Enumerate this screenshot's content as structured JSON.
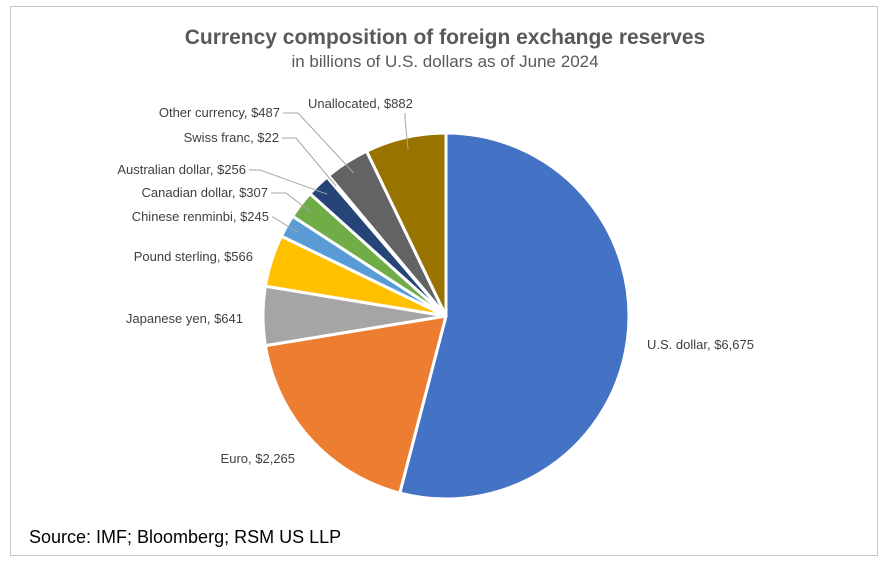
{
  "chart_data": {
    "type": "pie",
    "title": "Currency composition of foreign exchange reserves",
    "subtitle": "in billions of U.S. dollars as of June 2024",
    "slices": [
      {
        "name": "U.S. dollar",
        "value": 6675,
        "label": "U.S. dollar, $6,675",
        "color": "#4472C4"
      },
      {
        "name": "Euro",
        "value": 2265,
        "label": "Euro, $2,265",
        "color": "#ED7D31"
      },
      {
        "name": "Japanese yen",
        "value": 641,
        "label": "Japanese yen, $641",
        "color": "#A5A5A5"
      },
      {
        "name": "Pound sterling",
        "value": 566,
        "label": "Pound sterling, $566",
        "color": "#FFC000"
      },
      {
        "name": "Chinese renminbi",
        "value": 245,
        "label": "Chinese renminbi, $245",
        "color": "#5B9BD5"
      },
      {
        "name": "Canadian dollar",
        "value": 307,
        "label": "Canadian dollar, $307",
        "color": "#70AD47"
      },
      {
        "name": "Australian dollar",
        "value": 256,
        "label": "Australian dollar, $256",
        "color": "#264478"
      },
      {
        "name": "Swiss franc",
        "value": 22,
        "label": "Swiss franc, $22",
        "color": "#9E480E"
      },
      {
        "name": "Other currency",
        "value": 487,
        "label": "Other currency, $487",
        "color": "#636363"
      },
      {
        "name": "Unallocated",
        "value": 882,
        "label": "Unallocated, $882",
        "color": "#997300"
      }
    ]
  },
  "source": "Source: IMF; Bloomberg; RSM US LLP"
}
